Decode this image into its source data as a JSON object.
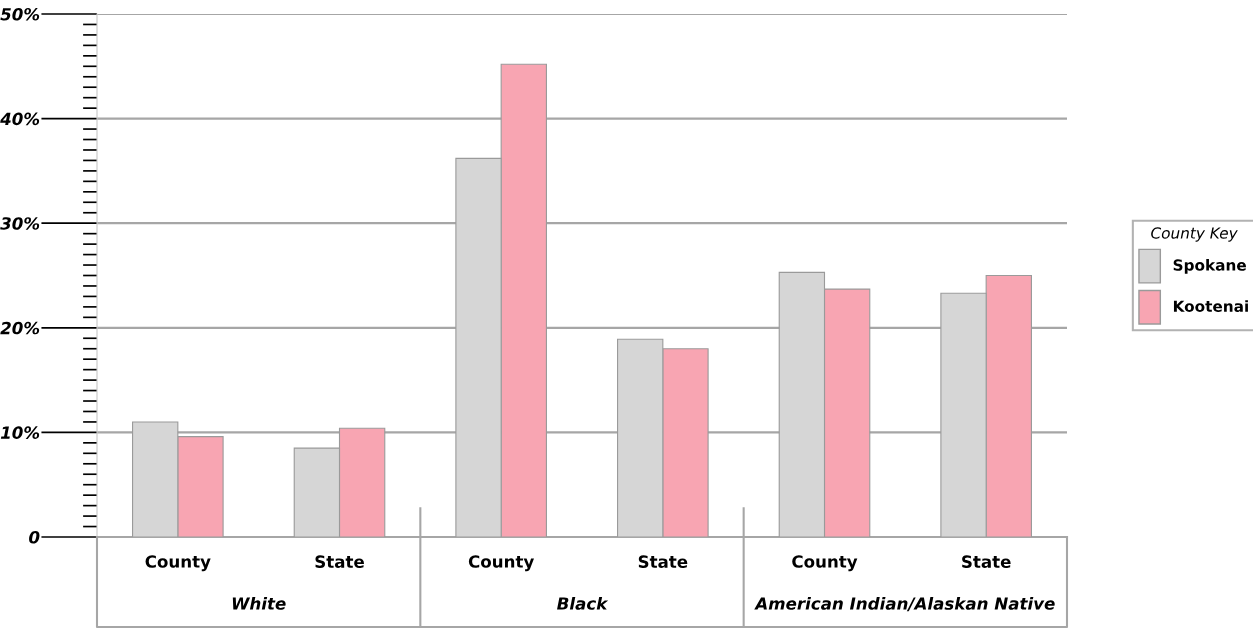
{
  "chart_data": {
    "type": "bar",
    "categories": [
      "County",
      "State",
      "County",
      "State",
      "County",
      "State"
    ],
    "series": [
      {
        "name": "Spokane",
        "color": "#d6d6d6",
        "values": [
          11.0,
          8.5,
          36.2,
          18.9,
          25.3,
          23.3
        ]
      },
      {
        "name": "Kootenai",
        "color": "#f8a5b2",
        "values": [
          9.6,
          10.4,
          45.2,
          18.0,
          23.7,
          25.0
        ]
      }
    ],
    "annotations": [
      "White",
      "Black",
      "American Indian/Alaskan Native"
    ],
    "legend_title": "County Key",
    "legend": "right",
    "grid": "y",
    "ylim": [
      0,
      50
    ],
    "yticks": [
      0,
      {
        "value": 1,
        "label": null
      },
      {
        "value": 2,
        "label": null
      },
      {
        "value": 3,
        "label": null
      },
      {
        "value": 4,
        "label": null
      },
      {
        "value": 5,
        "label": null
      },
      {
        "value": 6,
        "label": null
      },
      {
        "value": 7,
        "label": null
      },
      {
        "value": 8,
        "label": null
      },
      {
        "value": 9,
        "label": null
      },
      {
        "value": 10,
        "label": "10%"
      },
      {
        "value": 11,
        "label": null
      },
      {
        "value": 12,
        "label": null
      },
      {
        "value": 13,
        "label": null
      },
      {
        "value": 14,
        "label": null
      },
      {
        "value": 15,
        "label": null
      },
      {
        "value": 16,
        "label": null
      },
      {
        "value": 17,
        "label": null
      },
      {
        "value": 18,
        "label": null
      },
      {
        "value": 19,
        "label": null
      },
      {
        "value": 20,
        "label": "20%"
      },
      {
        "value": 21,
        "label": null
      },
      {
        "value": 22,
        "label": null
      },
      {
        "value": 23,
        "label": null
      },
      {
        "value": 24,
        "label": null
      },
      {
        "value": 25,
        "label": null
      },
      {
        "value": 26,
        "label": null
      },
      {
        "value": 27,
        "label": null
      },
      {
        "value": 28,
        "label": null
      },
      {
        "value": 29,
        "label": null
      },
      {
        "value": 30,
        "label": "30%"
      },
      {
        "value": 31,
        "label": null
      },
      {
        "value": 32,
        "label": null
      },
      {
        "value": 33,
        "label": null
      },
      {
        "value": 34,
        "label": null
      },
      {
        "value": 35,
        "label": null
      },
      {
        "value": 36,
        "label": null
      },
      {
        "value": 37,
        "label": null
      },
      {
        "value": 38,
        "label": null
      },
      {
        "value": 39,
        "label": null
      },
      {
        "value": 40,
        "label": "40%"
      },
      {
        "value": 41,
        "label": null
      },
      {
        "value": 42,
        "label": null
      },
      {
        "value": 43,
        "label": null
      },
      {
        "value": 44,
        "label": null
      },
      {
        "value": 45,
        "label": null
      },
      {
        "value": 46,
        "label": null
      },
      {
        "value": 47,
        "label": null
      },
      {
        "value": 48,
        "label": null
      },
      {
        "value": 49,
        "label": null
      },
      {
        "value": 50,
        "label": "50%"
      }
    ]
  }
}
